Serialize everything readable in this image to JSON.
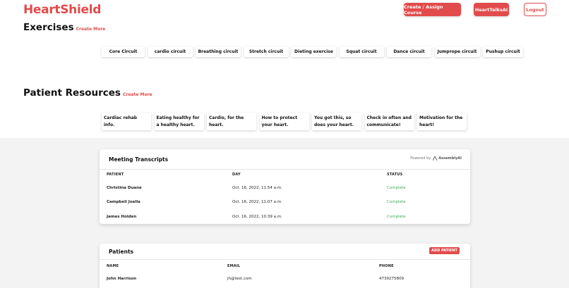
{
  "header": {
    "brand": "HeartShield",
    "create_assign_label": "Create / Assign Course",
    "hearttalks_label": "HeartTalksAI",
    "logout_label": "Logout"
  },
  "exercises": {
    "title": "Exercises",
    "create_more": "Create More",
    "items": [
      "Core Circuit",
      "cardio circuit",
      "Breathing circuit",
      "Stretch circuit",
      "Dieting exercise",
      "Squat circuit",
      "Dance circuit",
      "Jumprope circuit",
      "Pushup circuit"
    ]
  },
  "resources": {
    "title": "Patient Resources",
    "create_more": "Create More",
    "items": [
      "Cardiac rehab info.",
      "Eating healthy for a healthy heart.",
      "Cardio, for the heart.",
      "How to protect your heart.",
      "You got this, so does your heart.",
      "Check in often and communicate!",
      "Motivation for the heart!"
    ]
  },
  "transcripts": {
    "title": "Meeting Transcripts",
    "powered_by": "Powered by",
    "powered_brand": "AssemblyAI",
    "columns": [
      "PATIENT",
      "DAY",
      "STATUS"
    ],
    "rows": [
      {
        "patient": "Christina Duane",
        "day": "Oct. 16, 2022, 11:54 a.m.",
        "status": "Complete"
      },
      {
        "patient": "Campbell Joella",
        "day": "Oct. 16, 2022, 11:07 a.m.",
        "status": "Complete"
      },
      {
        "patient": "James Holden",
        "day": "Oct. 16, 2022, 10:39 a.m.",
        "status": "Complete"
      }
    ]
  },
  "patients": {
    "title": "Patients",
    "add_label": "ADD PATIENT",
    "columns": [
      "NAME",
      "EMAIL",
      "PHONE"
    ],
    "rows": [
      {
        "name": "John Harrison",
        "email": "jh@test.com",
        "phone": "4739275809"
      }
    ]
  },
  "colors": {
    "accent": "#e24b4b",
    "status_complete": "#3fae5a",
    "page_bg": "#f3f3f3"
  }
}
